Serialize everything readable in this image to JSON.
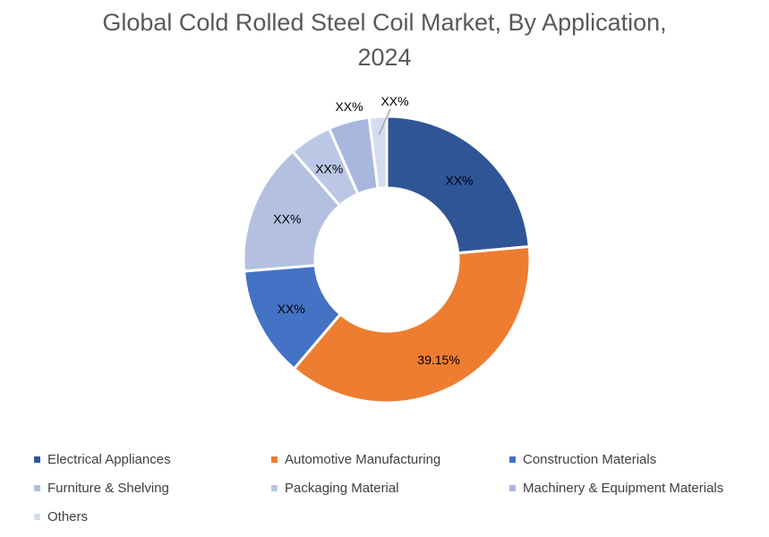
{
  "chart_data": {
    "type": "pie",
    "style": "donut",
    "title_line1": "Global Cold Rolled Steel Coil Market, By Application,",
    "title_line2": "2024",
    "legend_position": "bottom",
    "categories": [
      "Electrical Appliances",
      "Automotive Manufacturing",
      "Construction Materials",
      "Furniture & Shelving",
      "Packaging Material",
      "Machinery & Equipment Materials",
      "Others"
    ],
    "values": [
      24.5,
      39.15,
      13.0,
      15.5,
      5.0,
      4.8,
      2.05
    ],
    "data_labels": [
      "XX%",
      "39.15%",
      "XX%",
      "XX%",
      "XX%",
      "XX%",
      "XX%"
    ],
    "colors": [
      "#2F5597",
      "#ED7D31",
      "#4472C4",
      "#B4C0E0",
      "#BCC7E6",
      "#A9B7DE",
      "#D4DCEF"
    ]
  }
}
